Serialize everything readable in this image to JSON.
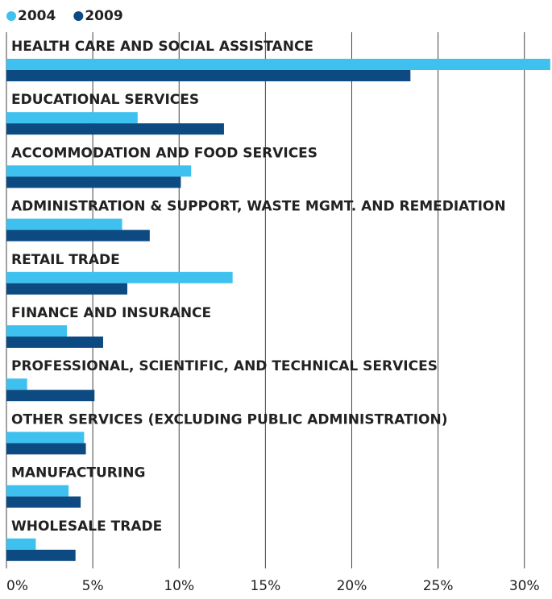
{
  "chart_data": {
    "type": "bar",
    "orientation": "horizontal",
    "categories": [
      "HEALTH CARE AND SOCIAL ASSISTANCE",
      "EDUCATIONAL SERVICES",
      "ACCOMMODATION AND FOOD SERVICES",
      "ADMINISTRATION & SUPPORT, WASTE MGMT. AND REMEDIATION",
      "RETAIL TRADE",
      "FINANCE AND INSURANCE",
      "PROFESSIONAL, SCIENTIFIC, AND TECHNICAL SERVICES",
      "OTHER SERVICES (EXCLUDING PUBLIC ADMINISTRATION)",
      "MANUFACTURING",
      "WHOLESALE TRADE"
    ],
    "series": [
      {
        "name": "2004",
        "color": "#3ec1ee",
        "values": [
          31.5,
          7.6,
          10.7,
          6.7,
          13.1,
          3.5,
          1.2,
          4.5,
          3.6,
          1.7
        ]
      },
      {
        "name": "2009",
        "color": "#0d4a82",
        "values": [
          23.4,
          12.6,
          10.1,
          8.3,
          7.0,
          5.6,
          5.1,
          4.6,
          4.3,
          4.0
        ]
      }
    ],
    "xlim": [
      0,
      31.6
    ],
    "xticks": [
      {
        "value": 0,
        "label": "0%"
      },
      {
        "value": 5,
        "label": "5%"
      },
      {
        "value": 10,
        "label": "10%"
      },
      {
        "value": 15,
        "label": "15%"
      },
      {
        "value": 20,
        "label": "20%"
      },
      {
        "value": 25,
        "label": "25%"
      },
      {
        "value": 30,
        "label": "30%"
      }
    ],
    "grid": true,
    "legend": "top-left"
  }
}
